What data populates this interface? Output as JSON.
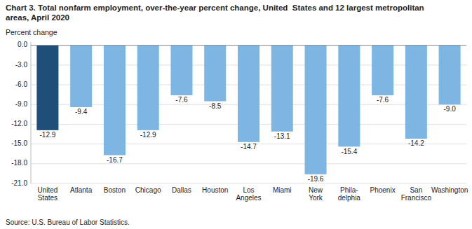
{
  "chart_data": {
    "type": "bar",
    "title": "Chart 3. Total nonfarm employment, over-the-year percent change, United  States and 12 largest metropolitan\nareas, April 2020",
    "ylabel": "Percent change",
    "source": "Source: U.S. Bureau of Labor Statistics.",
    "categories": [
      "United\nStates",
      "Atlanta",
      "Boston",
      "Chicago",
      "Dallas",
      "Houston",
      "Los\nAngeles",
      "Miami",
      "New\nYork",
      "Phila-\ndelphia",
      "Phoenix",
      "San\nFrancisco",
      "Washington"
    ],
    "values": [
      -12.9,
      -9.4,
      -16.7,
      -12.9,
      -7.6,
      -8.5,
      -14.7,
      -13.1,
      -19.6,
      -15.4,
      -7.6,
      -14.2,
      -9.0
    ],
    "value_labels": [
      "-12.9",
      "-9.4",
      "-16.7",
      "-12.9",
      "-7.6",
      "-8.5",
      "-14.7",
      "-13.1",
      "-19.6",
      "-15.4",
      "-7.6",
      "-14.2",
      "-9.0"
    ],
    "data_labels": true,
    "colors": [
      "#1f4e79",
      "#7eb6e3",
      "#7eb6e3",
      "#7eb6e3",
      "#7eb6e3",
      "#7eb6e3",
      "#7eb6e3",
      "#7eb6e3",
      "#7eb6e3",
      "#7eb6e3",
      "#7eb6e3",
      "#7eb6e3",
      "#7eb6e3"
    ],
    "ylim": [
      -21.0,
      0.5
    ],
    "yticks": [
      {
        "value": 0.0,
        "label": "0.0"
      },
      {
        "value": -3.0,
        "label": "-3.0"
      },
      {
        "value": -6.0,
        "label": "-6.0"
      },
      {
        "value": -9.0,
        "label": "-9.0"
      },
      {
        "value": -12.0,
        "label": "-12.0"
      },
      {
        "value": -15.0,
        "label": "-15.0"
      },
      {
        "value": -18.0,
        "label": "-18.0"
      },
      {
        "value": -21.0,
        "label": "-21.0"
      }
    ],
    "grid": true
  }
}
